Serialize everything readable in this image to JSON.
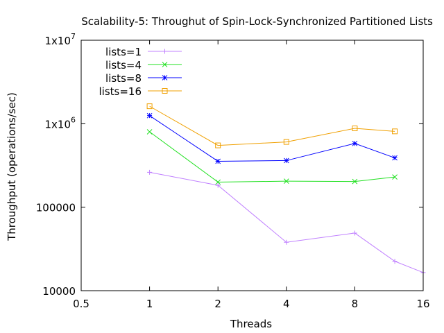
{
  "chart_data": {
    "type": "line",
    "title": "Scalability-5: Throughut of Spin-Lock-Synchronized Partitioned Lists",
    "xlabel": "Threads",
    "ylabel": "Throughput (operations/sec)",
    "x_scale": "log2",
    "y_scale": "log10",
    "xlim": [
      0.5,
      16
    ],
    "ylim": [
      10000,
      10000000
    ],
    "x_ticks": [
      {
        "value": 0.5,
        "label": "0.5"
      },
      {
        "value": 1,
        "label": "1"
      },
      {
        "value": 2,
        "label": "2"
      },
      {
        "value": 4,
        "label": "4"
      },
      {
        "value": 8,
        "label": "8"
      },
      {
        "value": 16,
        "label": "16"
      }
    ],
    "y_ticks": [
      {
        "value": 10000,
        "label": "10000",
        "base": "",
        "exp": ""
      },
      {
        "value": 100000,
        "label": "100000",
        "base": "",
        "exp": ""
      },
      {
        "value": 1000000,
        "label": "",
        "base": "1x10",
        "exp": "6"
      },
      {
        "value": 10000000,
        "label": "",
        "base": "1x10",
        "exp": "7"
      }
    ],
    "legend_position": "top-left",
    "grid": false,
    "series": [
      {
        "name": "lists=1",
        "color": "#c080ff",
        "marker": "plus",
        "x": [
          1,
          2,
          4,
          8,
          12,
          16
        ],
        "y": [
          262000,
          183000,
          38000,
          49000,
          22500,
          16500
        ]
      },
      {
        "name": "lists=4",
        "color": "#20e020",
        "marker": "cross",
        "x": [
          1,
          2,
          4,
          8,
          12
        ],
        "y": [
          800000,
          200000,
          205000,
          203000,
          230000
        ]
      },
      {
        "name": "lists=8",
        "color": "#0000ff",
        "marker": "star",
        "x": [
          1,
          2,
          4,
          8,
          12
        ],
        "y": [
          1250000,
          355000,
          362000,
          580000,
          390000
        ]
      },
      {
        "name": "lists=16",
        "color": "#f0a000",
        "marker": "box",
        "x": [
          1,
          2,
          4,
          8,
          12
        ],
        "y": [
          1620000,
          550000,
          605000,
          880000,
          810000
        ]
      }
    ]
  }
}
